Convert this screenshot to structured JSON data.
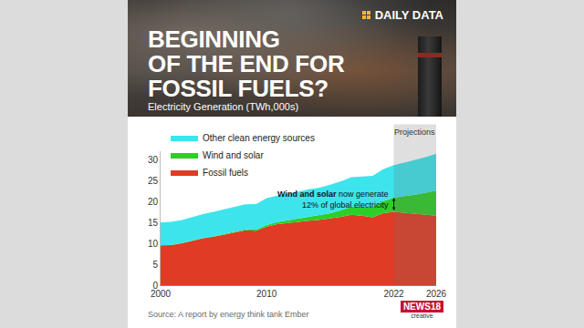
{
  "chart_data": {
    "type": "area",
    "stacked": true,
    "brand": "DAILY DATA",
    "title": [
      "BEGINNING",
      "OF THE END FOR",
      "FOSSIL FUELS?"
    ],
    "subtitle": "Electricity Generation (TWh,000s)",
    "x": [
      2000,
      2001,
      2002,
      2003,
      2004,
      2005,
      2006,
      2007,
      2008,
      2009,
      2010,
      2011,
      2012,
      2013,
      2014,
      2015,
      2016,
      2017,
      2018,
      2019,
      2020,
      2021,
      2022,
      2023,
      2024,
      2025,
      2026
    ],
    "series": [
      {
        "name": "Fossil fuels",
        "color": "#e03b25",
        "values": [
          9.5,
          9.6,
          10.0,
          10.6,
          11.2,
          11.6,
          12.1,
          12.6,
          13.1,
          13.0,
          14.0,
          14.6,
          14.9,
          15.2,
          15.4,
          15.6,
          15.9,
          16.3,
          16.8,
          16.6,
          16.2,
          17.2,
          17.5,
          17.3,
          17.0,
          16.8,
          16.6
        ]
      },
      {
        "name": "Wind and solar",
        "color": "#2ccf28",
        "values": [
          0.03,
          0.04,
          0.05,
          0.07,
          0.09,
          0.11,
          0.14,
          0.18,
          0.23,
          0.3,
          0.38,
          0.5,
          0.62,
          0.75,
          0.9,
          1.1,
          1.3,
          1.6,
          1.9,
          2.1,
          2.4,
          2.9,
          3.4,
          4.0,
          4.6,
          5.3,
          6.0
        ]
      },
      {
        "name": "Other clean energy sources",
        "color": "#3de4ec",
        "values": [
          5.5,
          5.5,
          5.5,
          5.6,
          5.7,
          5.8,
          5.9,
          5.9,
          6.0,
          6.1,
          6.4,
          6.3,
          6.3,
          6.4,
          6.6,
          6.6,
          6.8,
          6.9,
          7.1,
          7.3,
          7.5,
          7.6,
          7.8,
          8.0,
          8.3,
          8.5,
          8.8
        ]
      }
    ],
    "xlim": [
      2000,
      2026
    ],
    "xticks": [
      2000,
      2010,
      2022,
      2026
    ],
    "ylim": [
      0,
      32
    ],
    "yticks": [
      0,
      5,
      10,
      15,
      20,
      25,
      30
    ],
    "grid": false,
    "legend": "top left",
    "projections": {
      "label": "Projections",
      "from": 2022,
      "to": 2026
    },
    "annotation": {
      "lines": [
        "Wind and solar now generate",
        "12% of global electricity"
      ],
      "bold": "Wind and solar",
      "x": 2022
    },
    "source": "Source: A report by energy think tank Ember",
    "logo": "NEWS18",
    "logo_sub": "creative"
  }
}
